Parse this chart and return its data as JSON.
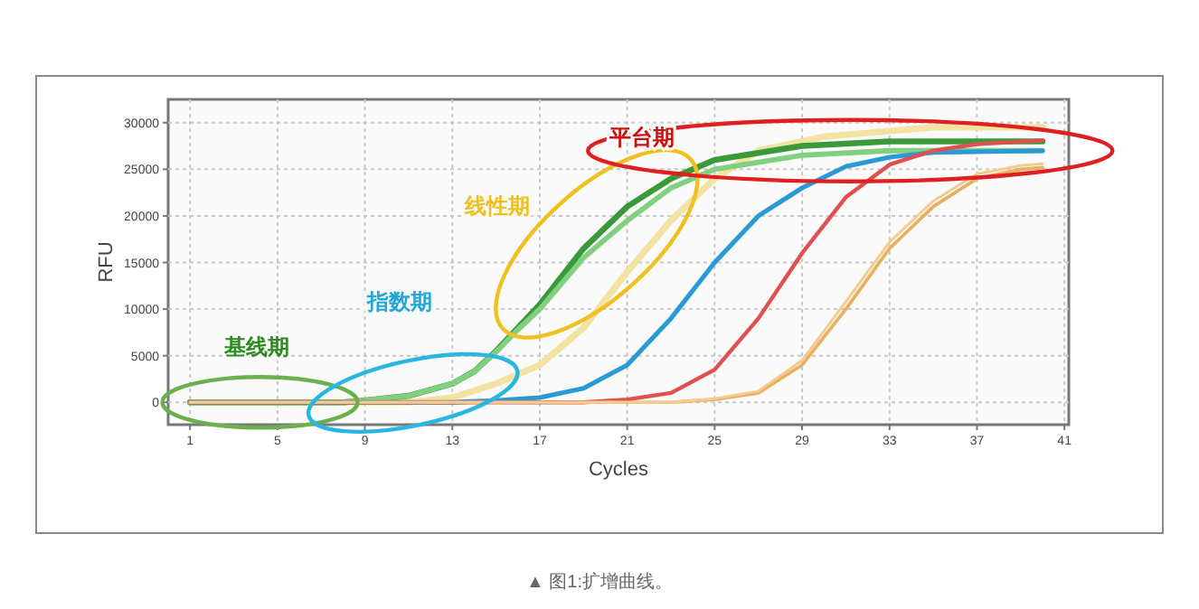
{
  "chart_data": {
    "type": "line",
    "xlabel": "Cycles",
    "ylabel": "RFU",
    "xlim": [
      0,
      41.2
    ],
    "ylim": [
      -2400,
      32500
    ],
    "xticks": [
      1,
      5,
      9,
      13,
      17,
      21,
      25,
      29,
      33,
      37,
      41
    ],
    "yticks": [
      0,
      5000,
      10000,
      15000,
      20000,
      25000,
      30000
    ],
    "grid": true,
    "marker": "none",
    "line_style": "solid",
    "series": [
      {
        "color": "#f3e3a3",
        "x": [
          1,
          11,
          13,
          15,
          17,
          19,
          21,
          23,
          25,
          27,
          30,
          35,
          40
        ],
        "values": [
          0,
          0,
          500,
          2000,
          4000,
          8000,
          14000,
          19500,
          24000,
          27000,
          28500,
          29500,
          29500
        ]
      },
      {
        "color": "#3a9a3a",
        "x": [
          1,
          8,
          9,
          11,
          13,
          14,
          15,
          16,
          17,
          18,
          19,
          21,
          23,
          25,
          29,
          33,
          40
        ],
        "values": [
          0,
          0,
          200,
          700,
          2000,
          3300,
          5500,
          8000,
          10500,
          13500,
          16500,
          21000,
          24000,
          26000,
          27500,
          28000,
          28000
        ]
      },
      {
        "color": "#80d080",
        "x": [
          1,
          8,
          9,
          11,
          13,
          14,
          15,
          16,
          17,
          19,
          21,
          23,
          25,
          29,
          33,
          40
        ],
        "values": [
          0,
          0,
          200,
          700,
          2000,
          3300,
          5400,
          7800,
          10000,
          15500,
          19500,
          23000,
          25000,
          26500,
          27000,
          27000
        ]
      },
      {
        "color": "#2a9ad6",
        "x": [
          1,
          13,
          15,
          17,
          19,
          21,
          23,
          25,
          27,
          29,
          31,
          33,
          35,
          40
        ],
        "values": [
          0,
          0,
          200,
          500,
          1500,
          4000,
          9000,
          15000,
          20000,
          23000,
          25300,
          26300,
          26800,
          27000
        ]
      },
      {
        "color": "#e05050",
        "x": [
          1,
          19,
          21,
          23,
          25,
          27,
          29,
          31,
          33,
          35,
          37,
          40
        ],
        "values": [
          0,
          0,
          300,
          1000,
          3500,
          9000,
          16000,
          22000,
          25500,
          27000,
          27700,
          28100
        ]
      },
      {
        "color": "#e8b060",
        "x": [
          1,
          23,
          25,
          27,
          29,
          31,
          33,
          35,
          37,
          39,
          40
        ],
        "values": [
          0,
          0,
          300,
          1000,
          4000,
          10000,
          16500,
          21000,
          24000,
          25000,
          25200
        ]
      },
      {
        "color": "#f2cc90",
        "x": [
          1,
          23,
          25,
          27,
          29,
          31,
          33,
          35,
          37,
          39,
          40
        ],
        "values": [
          0,
          0,
          400,
          1200,
          4500,
          10800,
          17200,
          21600,
          24500,
          25400,
          25600
        ]
      }
    ],
    "annotations": [
      "基线期",
      "指数期",
      "线性期",
      "平台期",
      "▲ 图1:扩增曲线。"
    ]
  }
}
